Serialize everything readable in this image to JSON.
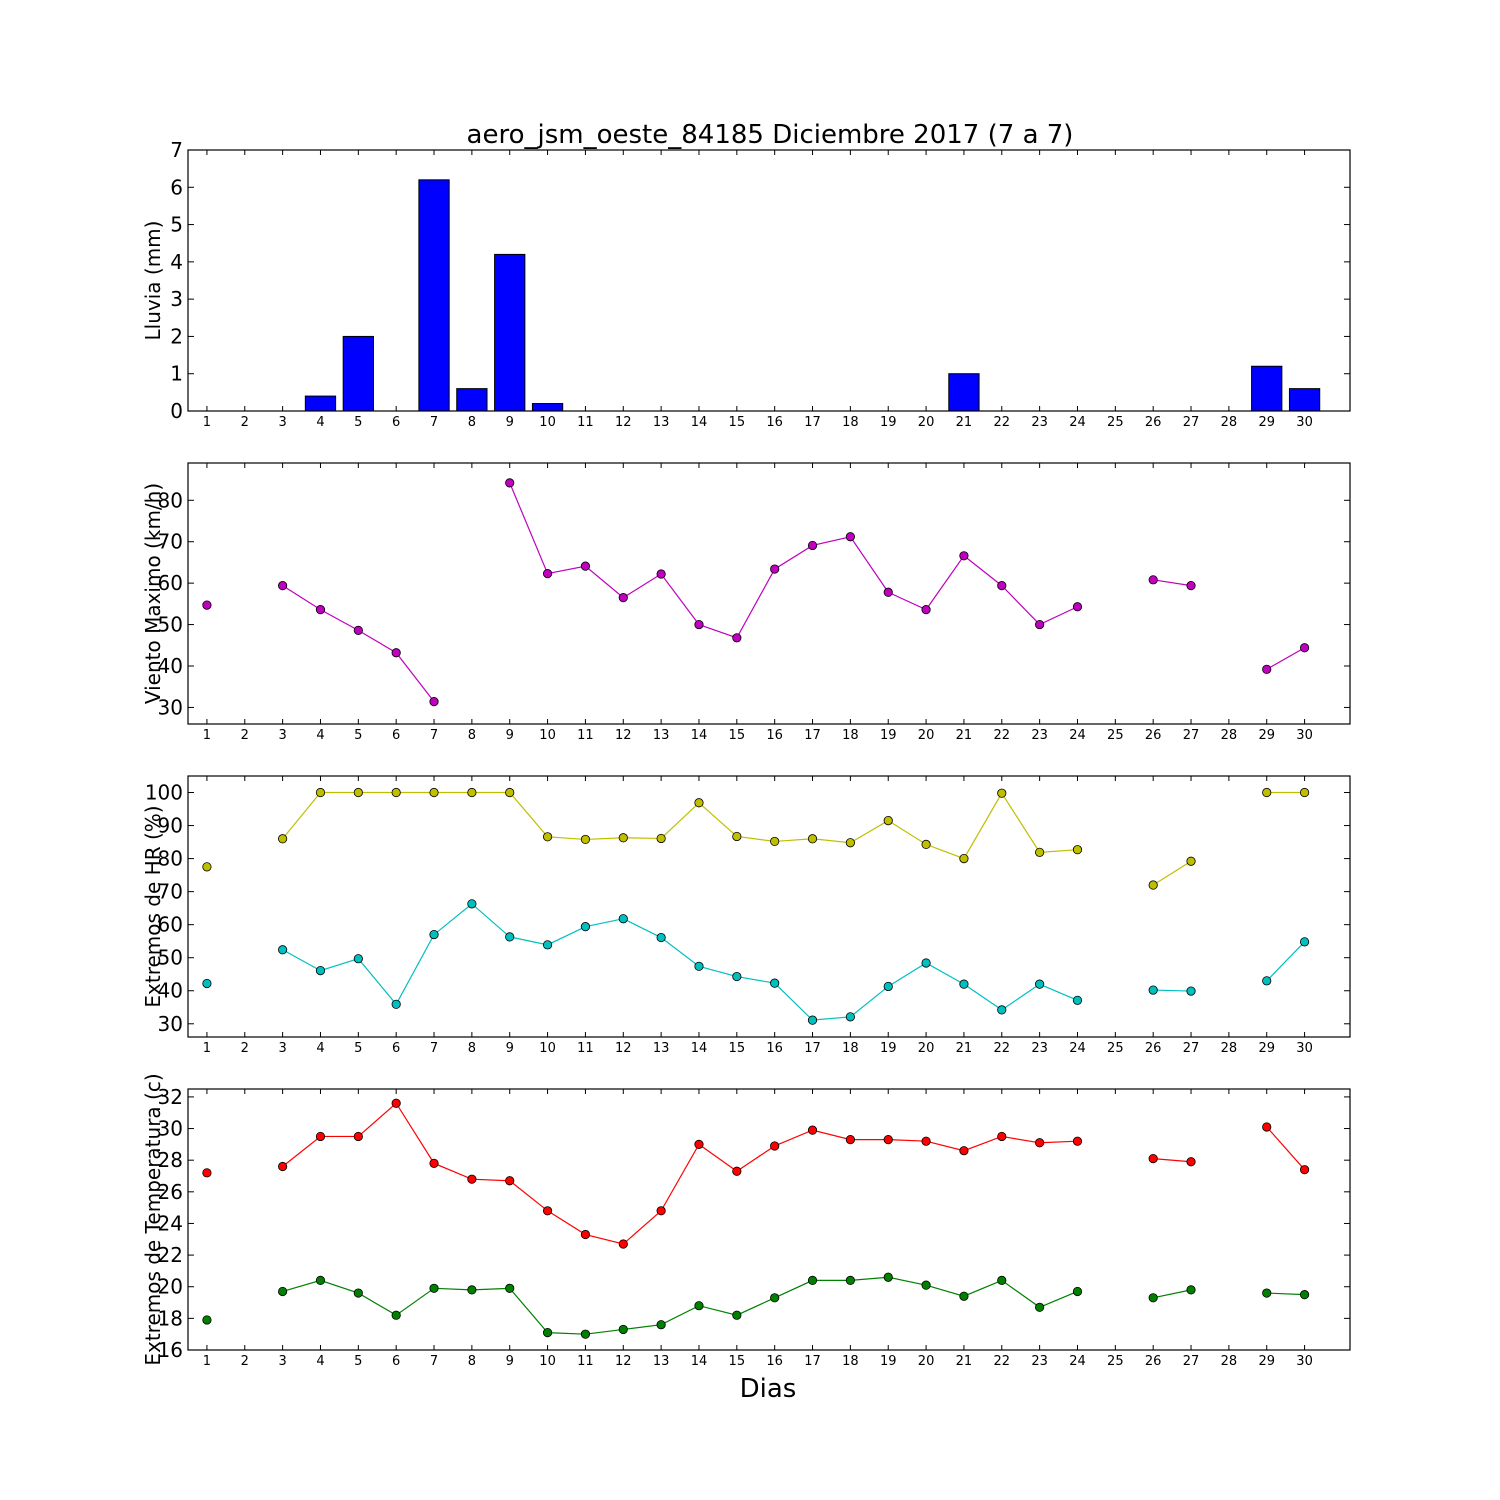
{
  "chart_data": [
    {
      "type": "bar",
      "title": "aero_jsm_oeste_84185 Diciembre 2017  (7 a 7)",
      "ylabel": "Lluvia (mm)",
      "xlabel": "",
      "ylim": [
        0,
        7
      ],
      "yticks": [
        "0",
        "1",
        "2",
        "3",
        "4",
        "5",
        "6",
        "7"
      ],
      "categories": [
        "1",
        "2",
        "3",
        "4",
        "5",
        "6",
        "7",
        "8",
        "9",
        "10",
        "11",
        "12",
        "13",
        "14",
        "15",
        "16",
        "17",
        "18",
        "19",
        "20",
        "21",
        "22",
        "23",
        "24",
        "25",
        "26",
        "27",
        "28",
        "29",
        "30"
      ],
      "series": [
        {
          "values": [
            0,
            0,
            0,
            0.4,
            2.0,
            0,
            6.2,
            0.6,
            4.2,
            0.2,
            0,
            0,
            0,
            0,
            0,
            0,
            0,
            0,
            0,
            0,
            1.0,
            0,
            0,
            0,
            null,
            0,
            0,
            null,
            1.2,
            0.6
          ],
          "color": "#0000ff"
        }
      ],
      "grid": false
    },
    {
      "type": "line",
      "title": "",
      "ylabel": "Viento Maximo (km/h)",
      "xlabel": "",
      "ylim": [
        26,
        89
      ],
      "yticks": [
        "30",
        "40",
        "50",
        "60",
        "70",
        "80"
      ],
      "categories": [
        "1",
        "2",
        "3",
        "4",
        "5",
        "6",
        "7",
        "8",
        "9",
        "10",
        "11",
        "12",
        "13",
        "14",
        "15",
        "16",
        "17",
        "18",
        "19",
        "20",
        "21",
        "22",
        "23",
        "24",
        "25",
        "26",
        "27",
        "28",
        "29",
        "30"
      ],
      "series": [
        {
          "values": [
            54.7,
            null,
            59.4,
            53.6,
            48.6,
            43.2,
            31.4,
            null,
            84.2,
            62.3,
            64.1,
            56.5,
            62.2,
            50.0,
            46.8,
            63.4,
            69.1,
            71.2,
            57.8,
            53.6,
            66.6,
            59.4,
            50.0,
            54.3,
            null,
            60.8,
            59.4,
            null,
            39.2,
            44.4
          ],
          "color": "#bf00bf"
        }
      ],
      "grid": false
    },
    {
      "type": "line",
      "title": "",
      "ylabel": "Extremos de HR (%)",
      "xlabel": "",
      "ylim": [
        26,
        105
      ],
      "yticks": [
        "30",
        "40",
        "50",
        "60",
        "70",
        "80",
        "90",
        "100"
      ],
      "categories": [
        "1",
        "2",
        "3",
        "4",
        "5",
        "6",
        "7",
        "8",
        "9",
        "10",
        "11",
        "12",
        "13",
        "14",
        "15",
        "16",
        "17",
        "18",
        "19",
        "20",
        "21",
        "22",
        "23",
        "24",
        "25",
        "26",
        "27",
        "28",
        "29",
        "30"
      ],
      "series": [
        {
          "values": [
            77.5,
            null,
            86.0,
            100,
            100,
            100,
            100,
            100,
            100,
            86.6,
            85.8,
            86.3,
            86.1,
            96.9,
            86.7,
            85.2,
            86.0,
            84.8,
            91.5,
            84.3,
            80.0,
            99.8,
            81.9,
            82.7,
            null,
            72.0,
            79.2,
            null,
            100,
            100
          ],
          "color": "#bfbf00"
        },
        {
          "values": [
            42.2,
            null,
            52.4,
            46.1,
            49.7,
            35.9,
            57.0,
            66.3,
            56.3,
            53.9,
            59.4,
            61.8,
            56.1,
            47.4,
            44.3,
            42.3,
            31.1,
            32.1,
            41.3,
            48.4,
            42.0,
            34.2,
            42.0,
            37.1,
            null,
            40.2,
            39.9,
            null,
            43.0,
            54.8
          ],
          "color": "#00bfbf"
        }
      ],
      "grid": false
    },
    {
      "type": "line",
      "title": "",
      "ylabel": "Extremos de Temperatura (c)",
      "xlabel": "Dias",
      "ylim": [
        16,
        32.5
      ],
      "yticks": [
        "16",
        "18",
        "20",
        "22",
        "24",
        "26",
        "28",
        "30",
        "32"
      ],
      "categories": [
        "1",
        "2",
        "3",
        "4",
        "5",
        "6",
        "7",
        "8",
        "9",
        "10",
        "11",
        "12",
        "13",
        "14",
        "15",
        "16",
        "17",
        "18",
        "19",
        "20",
        "21",
        "22",
        "23",
        "24",
        "25",
        "26",
        "27",
        "28",
        "29",
        "30"
      ],
      "series": [
        {
          "values": [
            27.2,
            null,
            27.6,
            29.5,
            29.5,
            31.6,
            27.8,
            26.8,
            26.7,
            24.8,
            23.3,
            22.7,
            24.8,
            29.0,
            27.3,
            28.9,
            29.9,
            29.3,
            29.3,
            29.2,
            28.6,
            29.5,
            29.1,
            29.2,
            null,
            28.1,
            27.9,
            null,
            30.1,
            27.4
          ],
          "color": "#ff0000"
        },
        {
          "values": [
            17.9,
            null,
            19.7,
            20.4,
            19.6,
            18.2,
            19.9,
            19.8,
            19.9,
            17.1,
            17.0,
            17.3,
            17.6,
            18.8,
            18.2,
            19.3,
            20.4,
            20.4,
            20.6,
            20.1,
            19.4,
            20.4,
            18.7,
            19.7,
            null,
            19.3,
            19.8,
            null,
            19.6,
            19.5
          ],
          "color": "#008000"
        }
      ],
      "grid": false
    }
  ]
}
